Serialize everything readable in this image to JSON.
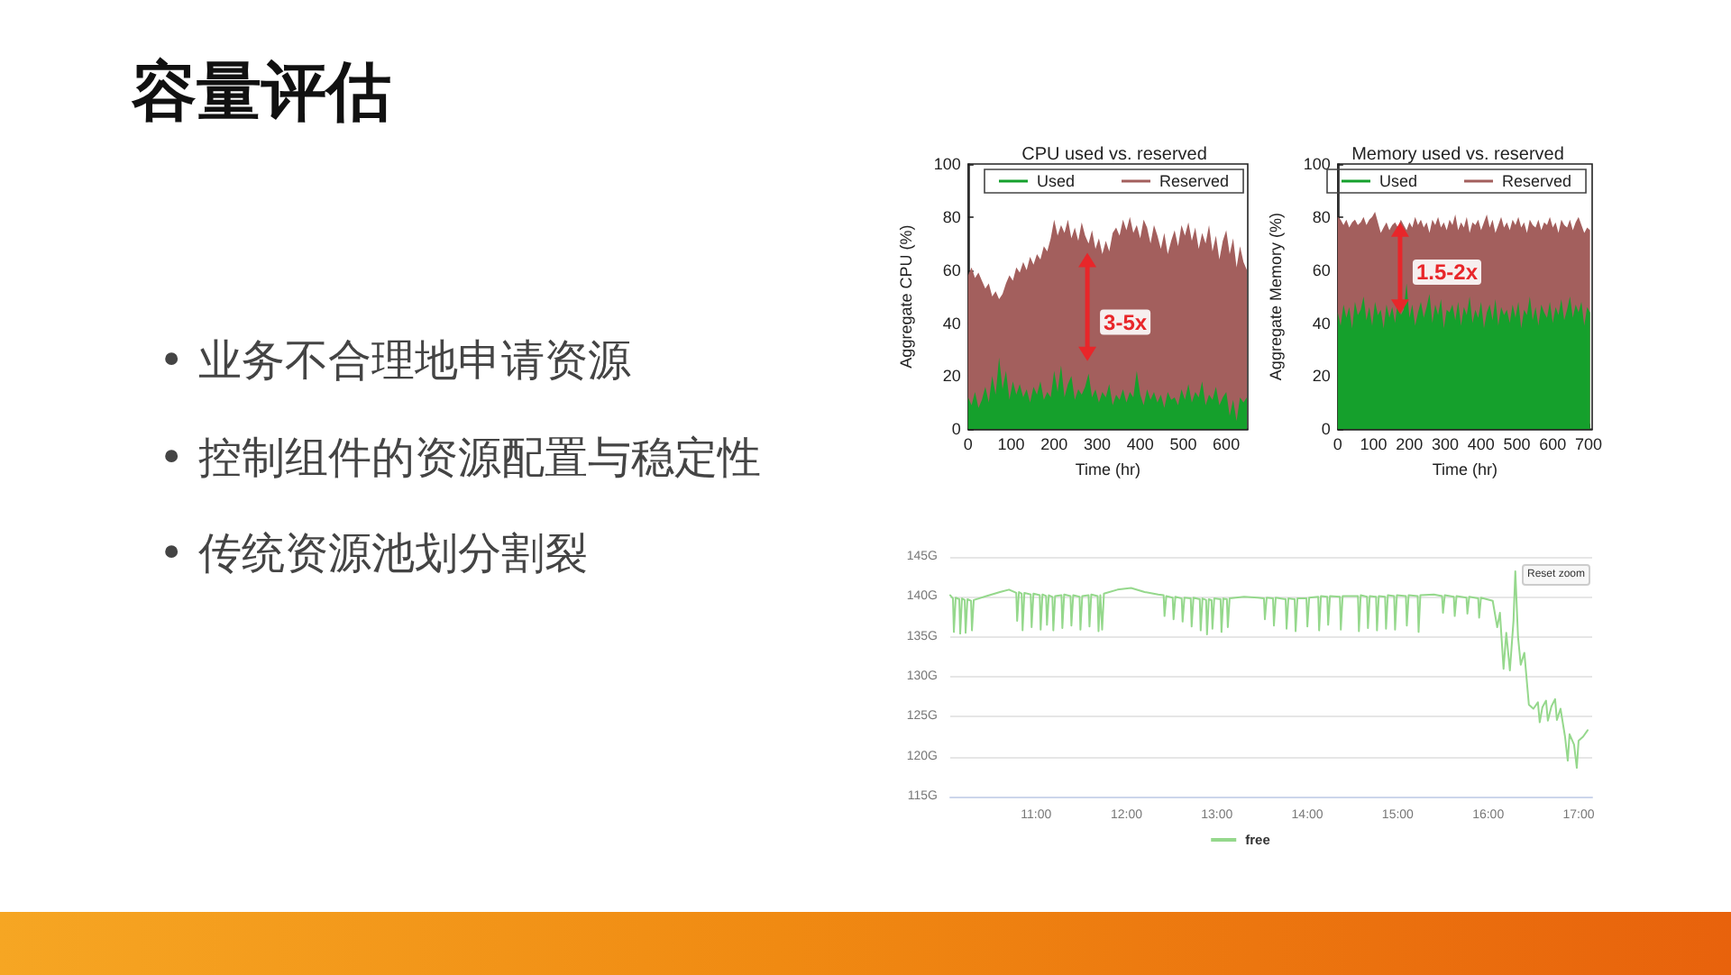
{
  "chart_data": [
    {
      "type": "other",
      "title": "容量评估",
      "annotations": [
        "• 业务不合理地申请资源",
        "• 控制组件的资源配置与稳定性",
        "• 传统资源池划分割裂"
      ]
    },
    {
      "type": "area",
      "title": "CPU used vs. reserved",
      "xlabel": "Time (hr)",
      "ylabel": "Aggregate CPU (%)",
      "x": [
        0,
        8,
        16,
        24,
        32,
        40,
        48,
        56,
        64,
        72,
        80,
        88,
        96,
        104,
        112,
        120,
        128,
        136,
        144,
        152,
        160,
        168,
        176,
        184,
        192,
        200,
        208,
        216,
        224,
        232,
        240,
        248,
        256,
        264,
        272,
        280,
        288,
        296,
        304,
        312,
        320,
        328,
        336,
        344,
        352,
        360,
        368,
        376,
        384,
        392,
        400,
        408,
        416,
        424,
        432,
        440,
        448,
        456,
        464,
        472,
        480,
        488,
        496,
        504,
        512,
        520,
        528,
        536,
        544,
        552,
        560,
        568,
        576,
        584,
        592,
        600,
        608,
        616,
        624,
        632,
        640,
        648
      ],
      "series": [
        {
          "name": "Used",
          "color": "#15a02c",
          "values": [
            12,
            9,
            14,
            8,
            11,
            16,
            10,
            20,
            13,
            27,
            15,
            22,
            11,
            18,
            13,
            17,
            12,
            15,
            10,
            16,
            13,
            18,
            11,
            14,
            12,
            22,
            14,
            24,
            12,
            17,
            20,
            11,
            15,
            13,
            16,
            21,
            12,
            15,
            10,
            14,
            12,
            17,
            9,
            13,
            11,
            15,
            10,
            14,
            12,
            22,
            13,
            9,
            15,
            11,
            14,
            10,
            13,
            8,
            14,
            11,
            12,
            9,
            15,
            11,
            17,
            10,
            14,
            12,
            18,
            9,
            13,
            11,
            16,
            9,
            12,
            14,
            5,
            11,
            3,
            12,
            10,
            12
          ]
        },
        {
          "name": "Reserved",
          "color": "#a35f5d",
          "values": [
            58,
            61,
            57,
            59,
            56,
            53,
            55,
            50,
            52,
            49,
            51,
            55,
            58,
            56,
            61,
            59,
            63,
            60,
            65,
            62,
            66,
            64,
            69,
            67,
            72,
            79,
            73,
            77,
            74,
            79,
            72,
            76,
            71,
            78,
            73,
            70,
            75,
            68,
            72,
            66,
            71,
            67,
            74,
            76,
            73,
            79,
            75,
            80,
            74,
            77,
            72,
            79,
            76,
            70,
            77,
            73,
            68,
            74,
            66,
            71,
            75,
            69,
            77,
            73,
            78,
            71,
            76,
            68,
            74,
            70,
            77,
            67,
            73,
            64,
            71,
            75,
            66,
            72,
            61,
            69,
            63,
            60
          ]
        }
      ],
      "xlim": [
        0,
        650
      ],
      "xticks": [
        0,
        100,
        200,
        300,
        400,
        500,
        600
      ],
      "ylim": [
        0,
        100
      ],
      "yticks": [
        0,
        20,
        40,
        60,
        80,
        100
      ],
      "legend": "top",
      "annotations": [
        "3-5x"
      ]
    },
    {
      "type": "area",
      "title": "Memory used vs. reserved",
      "xlabel": "Time (hr)",
      "ylabel": "Aggregate Memory (%)",
      "x": [
        0,
        8,
        16,
        24,
        32,
        40,
        48,
        56,
        64,
        72,
        80,
        88,
        96,
        104,
        112,
        120,
        128,
        136,
        144,
        152,
        160,
        168,
        176,
        184,
        192,
        200,
        208,
        216,
        224,
        232,
        240,
        248,
        256,
        264,
        272,
        280,
        288,
        296,
        304,
        312,
        320,
        328,
        336,
        344,
        352,
        360,
        368,
        376,
        384,
        392,
        400,
        408,
        416,
        424,
        432,
        440,
        448,
        456,
        464,
        472,
        480,
        488,
        496,
        504,
        512,
        520,
        528,
        536,
        544,
        552,
        560,
        568,
        576,
        584,
        592,
        600,
        608,
        616,
        624,
        632,
        640,
        648,
        656,
        664,
        672,
        680,
        688,
        696,
        704
      ],
      "series": [
        {
          "name": "Used",
          "color": "#15a02c",
          "values": [
            44,
            39,
            47,
            42,
            46,
            38,
            48,
            43,
            45,
            50,
            41,
            46,
            39,
            48,
            43,
            45,
            38,
            47,
            42,
            46,
            40,
            49,
            43,
            45,
            55,
            42,
            47,
            39,
            44,
            48,
            42,
            46,
            51,
            40,
            47,
            43,
            49,
            38,
            45,
            44,
            47,
            41,
            48,
            39,
            46,
            43,
            50,
            40,
            45,
            42,
            48,
            38,
            44,
            47,
            41,
            49,
            39,
            46,
            43,
            45,
            40,
            47,
            42,
            48,
            38,
            45,
            43,
            50,
            41,
            46,
            39,
            47,
            44,
            42,
            48,
            40,
            46,
            43,
            49,
            41,
            45,
            50,
            42,
            47,
            44,
            48,
            39,
            46,
            44
          ]
        },
        {
          "name": "Reserved",
          "color": "#a35f5d",
          "values": [
            80,
            79,
            77,
            79,
            76,
            78,
            79,
            77,
            78,
            80,
            77,
            79,
            80,
            82,
            78,
            74,
            76,
            78,
            75,
            77,
            78,
            76,
            79,
            77,
            75,
            78,
            76,
            80,
            77,
            79,
            76,
            78,
            74,
            79,
            77,
            80,
            76,
            78,
            75,
            79,
            77,
            81,
            75,
            78,
            76,
            80,
            74,
            78,
            77,
            79,
            75,
            78,
            81,
            76,
            79,
            74,
            77,
            80,
            76,
            78,
            75,
            79,
            77,
            80,
            76,
            78,
            74,
            79,
            77,
            76,
            79,
            75,
            78,
            77,
            80,
            76,
            78,
            74,
            79,
            77,
            76,
            79,
            75,
            78,
            80,
            77,
            74,
            76,
            75
          ]
        }
      ],
      "xlim": [
        0,
        710
      ],
      "xticks": [
        0,
        100,
        200,
        300,
        400,
        500,
        600,
        700
      ],
      "ylim": [
        0,
        100
      ],
      "yticks": [
        0,
        20,
        40,
        60,
        80,
        100
      ],
      "legend": "top",
      "annotations": [
        "1.5-2x"
      ]
    },
    {
      "type": "line",
      "x": [
        10.05,
        10.08,
        10.09,
        10.11,
        10.15,
        10.16,
        10.18,
        10.21,
        10.22,
        10.24,
        10.28,
        10.29,
        10.31,
        10.45,
        10.6,
        10.7,
        10.78,
        10.79,
        10.81,
        10.84,
        10.85,
        10.87,
        10.94,
        10.95,
        10.97,
        11.04,
        11.05,
        11.07,
        11.11,
        11.12,
        11.14,
        11.18,
        11.19,
        11.21,
        11.28,
        11.29,
        11.31,
        11.38,
        11.39,
        11.41,
        11.48,
        11.49,
        11.51,
        11.58,
        11.59,
        11.61,
        11.68,
        11.69,
        11.71,
        11.73,
        11.75,
        11.9,
        12.05,
        12.2,
        12.35,
        12.41,
        12.42,
        12.44,
        12.51,
        12.52,
        12.54,
        12.61,
        12.62,
        12.64,
        12.71,
        12.72,
        12.74,
        12.81,
        12.82,
        12.84,
        12.88,
        12.89,
        12.91,
        12.94,
        12.95,
        12.97,
        13.04,
        13.05,
        13.07,
        13.11,
        13.12,
        13.14,
        13.3,
        13.45,
        13.52,
        13.53,
        13.55,
        13.62,
        13.63,
        13.65,
        13.76,
        13.77,
        13.79,
        13.86,
        13.87,
        13.89,
        13.99,
        14.0,
        14.02,
        14.12,
        14.13,
        14.15,
        14.22,
        14.23,
        14.25,
        14.36,
        14.37,
        14.39,
        14.56,
        14.57,
        14.59,
        14.66,
        14.67,
        14.69,
        14.76,
        14.77,
        14.79,
        14.86,
        14.87,
        14.89,
        14.96,
        14.97,
        14.99,
        15.09,
        15.1,
        15.12,
        15.22,
        15.23,
        15.25,
        15.4,
        15.49,
        15.5,
        15.52,
        15.62,
        15.63,
        15.65,
        15.76,
        15.77,
        15.79,
        15.89,
        15.9,
        15.92,
        16.05,
        16.1,
        16.13,
        16.17,
        16.2,
        16.24,
        16.28,
        16.3,
        16.33,
        16.36,
        16.4,
        16.45,
        16.5,
        16.55,
        16.57,
        16.6,
        16.64,
        16.66,
        16.7,
        16.74,
        16.76,
        16.8,
        16.85,
        16.88,
        16.9,
        16.95,
        16.98,
        17.0,
        17.05,
        17.1
      ],
      "series": [
        {
          "name": "free",
          "color": "#95d88c",
          "values": [
            140.2,
            139.8,
            135.6,
            139.9,
            139.7,
            135.4,
            139.8,
            139.6,
            135.5,
            139.7,
            139.5,
            135.8,
            139.6,
            140.1,
            140.6,
            140.9,
            140.5,
            137.0,
            140.6,
            140.4,
            135.8,
            140.5,
            140.3,
            136.2,
            140.4,
            140.2,
            135.9,
            140.3,
            140.1,
            136.5,
            140.2,
            140.0,
            135.8,
            140.1,
            140.2,
            136.1,
            140.3,
            140.1,
            136.4,
            140.2,
            140.0,
            135.9,
            140.1,
            140.2,
            136.3,
            140.3,
            140.1,
            135.7,
            140.2,
            135.9,
            140.4,
            140.9,
            141.1,
            140.6,
            140.3,
            140.2,
            137.6,
            140.1,
            139.9,
            137.2,
            140.0,
            139.8,
            136.9,
            139.9,
            139.8,
            136.3,
            139.9,
            139.7,
            135.8,
            139.8,
            139.6,
            135.3,
            139.7,
            139.6,
            136.0,
            139.8,
            139.7,
            135.6,
            139.8,
            139.7,
            136.2,
            139.8,
            140.0,
            139.9,
            139.8,
            137.2,
            139.9,
            139.8,
            136.4,
            139.9,
            139.7,
            136.0,
            139.8,
            139.7,
            135.7,
            139.8,
            139.8,
            136.3,
            139.9,
            140.0,
            135.8,
            140.1,
            140.0,
            136.5,
            140.1,
            140.0,
            135.9,
            140.1,
            140.1,
            135.7,
            140.2,
            140.0,
            136.1,
            140.1,
            140.0,
            135.8,
            140.1,
            140.0,
            136.0,
            140.2,
            140.1,
            135.9,
            140.2,
            140.1,
            136.4,
            140.2,
            140.1,
            135.6,
            140.2,
            140.3,
            140.1,
            138.0,
            140.2,
            140.0,
            137.6,
            140.1,
            139.9,
            137.9,
            140.0,
            139.8,
            137.4,
            139.9,
            139.5,
            136.2,
            138.0,
            131.0,
            135.5,
            130.8,
            137.0,
            143.2,
            135.0,
            131.5,
            133.0,
            126.5,
            126.0,
            126.8,
            124.3,
            126.2,
            127.0,
            124.5,
            126.3,
            127.2,
            124.6,
            126.0,
            122.5,
            119.5,
            122.8,
            121.5,
            118.6,
            122.0,
            122.5,
            123.3
          ]
        }
      ],
      "xlim": [
        10.05,
        17.15
      ],
      "xticks": [
        {
          "value": 11,
          "label": "11:00"
        },
        {
          "value": 12,
          "label": "12:00"
        },
        {
          "value": 13,
          "label": "13:00"
        },
        {
          "value": 14,
          "label": "14:00"
        },
        {
          "value": 15,
          "label": "15:00"
        },
        {
          "value": 16,
          "label": "16:00"
        },
        {
          "value": 17,
          "label": "17:00"
        }
      ],
      "ylim": [
        115,
        145
      ],
      "yticks": [
        {
          "value": 115,
          "label": "115G"
        },
        {
          "value": 120,
          "label": "120G"
        },
        {
          "value": 125,
          "label": "125G"
        },
        {
          "value": 130,
          "label": "130G"
        },
        {
          "value": 135,
          "label": "135G"
        },
        {
          "value": 140,
          "label": "140G"
        },
        {
          "value": 145,
          "label": "145G"
        }
      ],
      "grid": "y",
      "legend": "bottom",
      "annotations": [
        "Reset zoom"
      ]
    }
  ]
}
